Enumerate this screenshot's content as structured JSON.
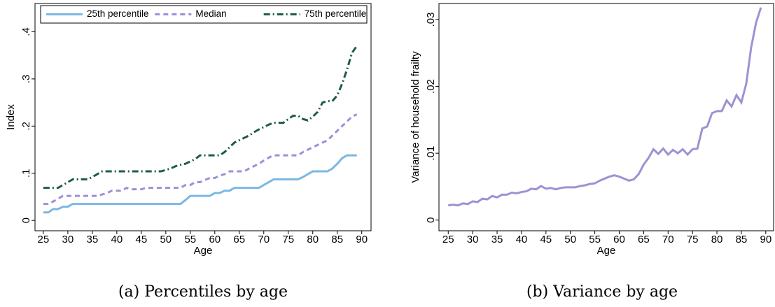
{
  "chart_data": [
    {
      "type": "line",
      "caption": "(a) Percentiles by age",
      "xlabel": "Age",
      "ylabel": "Index",
      "x": [
        25,
        26,
        27,
        28,
        29,
        30,
        31,
        32,
        33,
        34,
        35,
        36,
        37,
        38,
        39,
        40,
        41,
        42,
        43,
        44,
        45,
        46,
        47,
        48,
        49,
        50,
        51,
        52,
        53,
        54,
        55,
        56,
        57,
        58,
        59,
        60,
        61,
        62,
        63,
        64,
        65,
        66,
        67,
        68,
        69,
        70,
        71,
        72,
        73,
        74,
        75,
        76,
        77,
        78,
        79,
        80,
        81,
        82,
        83,
        84,
        85,
        86,
        87,
        88,
        89
      ],
      "series": [
        {
          "name": "25th percentile",
          "color": "#7cb8e2",
          "dash": "solid",
          "values": [
            0.017,
            0.017,
            0.024,
            0.024,
            0.029,
            0.029,
            0.035,
            0.035,
            0.035,
            0.035,
            0.035,
            0.035,
            0.035,
            0.035,
            0.035,
            0.035,
            0.035,
            0.035,
            0.035,
            0.035,
            0.035,
            0.035,
            0.035,
            0.035,
            0.035,
            0.035,
            0.035,
            0.035,
            0.035,
            0.043,
            0.052,
            0.052,
            0.052,
            0.052,
            0.052,
            0.058,
            0.058,
            0.063,
            0.063,
            0.069,
            0.069,
            0.069,
            0.069,
            0.069,
            0.069,
            0.075,
            0.081,
            0.087,
            0.087,
            0.087,
            0.087,
            0.087,
            0.087,
            0.092,
            0.098,
            0.104,
            0.104,
            0.104,
            0.104,
            0.11,
            0.12,
            0.132,
            0.138,
            0.138,
            0.138
          ]
        },
        {
          "name": "Median",
          "color": "#9b90d8",
          "dash": "dash",
          "values": [
            0.035,
            0.035,
            0.04,
            0.046,
            0.052,
            0.052,
            0.052,
            0.052,
            0.052,
            0.052,
            0.052,
            0.052,
            0.055,
            0.058,
            0.063,
            0.063,
            0.063,
            0.069,
            0.066,
            0.066,
            0.066,
            0.069,
            0.069,
            0.069,
            0.069,
            0.069,
            0.069,
            0.069,
            0.069,
            0.075,
            0.075,
            0.081,
            0.081,
            0.086,
            0.09,
            0.09,
            0.095,
            0.098,
            0.104,
            0.104,
            0.104,
            0.104,
            0.11,
            0.115,
            0.12,
            0.127,
            0.133,
            0.138,
            0.138,
            0.138,
            0.138,
            0.138,
            0.138,
            0.145,
            0.15,
            0.155,
            0.16,
            0.165,
            0.17,
            0.18,
            0.19,
            0.2,
            0.21,
            0.22,
            0.225
          ]
        },
        {
          "name": "75th percentile",
          "color": "#1f5b4c",
          "dash": "dashdot",
          "values": [
            0.069,
            0.069,
            0.069,
            0.069,
            0.075,
            0.081,
            0.087,
            0.087,
            0.087,
            0.087,
            0.092,
            0.098,
            0.104,
            0.104,
            0.104,
            0.104,
            0.104,
            0.104,
            0.104,
            0.104,
            0.104,
            0.104,
            0.104,
            0.104,
            0.104,
            0.107,
            0.11,
            0.115,
            0.118,
            0.12,
            0.125,
            0.13,
            0.138,
            0.138,
            0.138,
            0.138,
            0.138,
            0.145,
            0.155,
            0.165,
            0.17,
            0.175,
            0.18,
            0.187,
            0.193,
            0.198,
            0.203,
            0.207,
            0.207,
            0.207,
            0.215,
            0.222,
            0.222,
            0.215,
            0.212,
            0.22,
            0.23,
            0.25,
            0.253,
            0.253,
            0.265,
            0.29,
            0.32,
            0.355,
            0.37
          ]
        }
      ],
      "xlim": [
        23.3,
        91.9
      ],
      "xticks": [
        25,
        30,
        35,
        40,
        45,
        50,
        55,
        60,
        65,
        70,
        75,
        80,
        85,
        90
      ],
      "ylim": [
        -0.022,
        0.46
      ],
      "yticks": [
        0,
        {
          "value": 0.1,
          "label": ".1"
        },
        {
          "value": 0.2,
          "label": ".2"
        },
        {
          "value": 0.3,
          "label": ".3"
        },
        {
          "value": 0.4,
          "label": ".4"
        }
      ],
      "grid": false,
      "legend": "top"
    },
    {
      "type": "line",
      "caption": "(b) Variance by age",
      "xlabel": "Age",
      "ylabel": "Variance of household frailty",
      "x": [
        25,
        26,
        27,
        28,
        29,
        30,
        31,
        32,
        33,
        34,
        35,
        36,
        37,
        38,
        39,
        40,
        41,
        42,
        43,
        44,
        45,
        46,
        47,
        48,
        49,
        50,
        51,
        52,
        53,
        54,
        55,
        56,
        57,
        58,
        59,
        60,
        61,
        62,
        63,
        64,
        65,
        66,
        67,
        68,
        69,
        70,
        71,
        72,
        73,
        74,
        75,
        76,
        77,
        78,
        79,
        80,
        81,
        82,
        83,
        84,
        85,
        86,
        87,
        88,
        89
      ],
      "series": [
        {
          "color": "#9b93d4",
          "dash": "solid",
          "values": [
            0.0022,
            0.0023,
            0.0022,
            0.0025,
            0.0024,
            0.0028,
            0.0027,
            0.0032,
            0.0031,
            0.0036,
            0.0034,
            0.0038,
            0.0038,
            0.0041,
            0.004,
            0.0042,
            0.0043,
            0.0047,
            0.0046,
            0.0051,
            0.0047,
            0.0048,
            0.0046,
            0.0048,
            0.0049,
            0.0049,
            0.0049,
            0.0051,
            0.0052,
            0.0054,
            0.0055,
            0.0059,
            0.0062,
            0.0065,
            0.0067,
            0.0065,
            0.0062,
            0.0059,
            0.0061,
            0.0069,
            0.0083,
            0.0093,
            0.0106,
            0.0099,
            0.0107,
            0.0098,
            0.0105,
            0.01,
            0.0106,
            0.0098,
            0.0106,
            0.0107,
            0.0137,
            0.014,
            0.016,
            0.0163,
            0.0163,
            0.0179,
            0.017,
            0.0187,
            0.0176,
            0.0204,
            0.0258,
            0.0295,
            0.0318
          ]
        }
      ],
      "xlim": [
        23.1,
        91.6
      ],
      "xticks": [
        25,
        30,
        35,
        40,
        45,
        50,
        55,
        60,
        65,
        70,
        75,
        80,
        85,
        90
      ],
      "ylim": [
        -0.0016,
        0.0324
      ],
      "yticks": [
        0,
        {
          "value": 0.01,
          "label": ".01"
        },
        {
          "value": 0.02,
          "label": ".02"
        },
        {
          "value": 0.03,
          "label": ".03"
        }
      ],
      "grid": false
    }
  ]
}
